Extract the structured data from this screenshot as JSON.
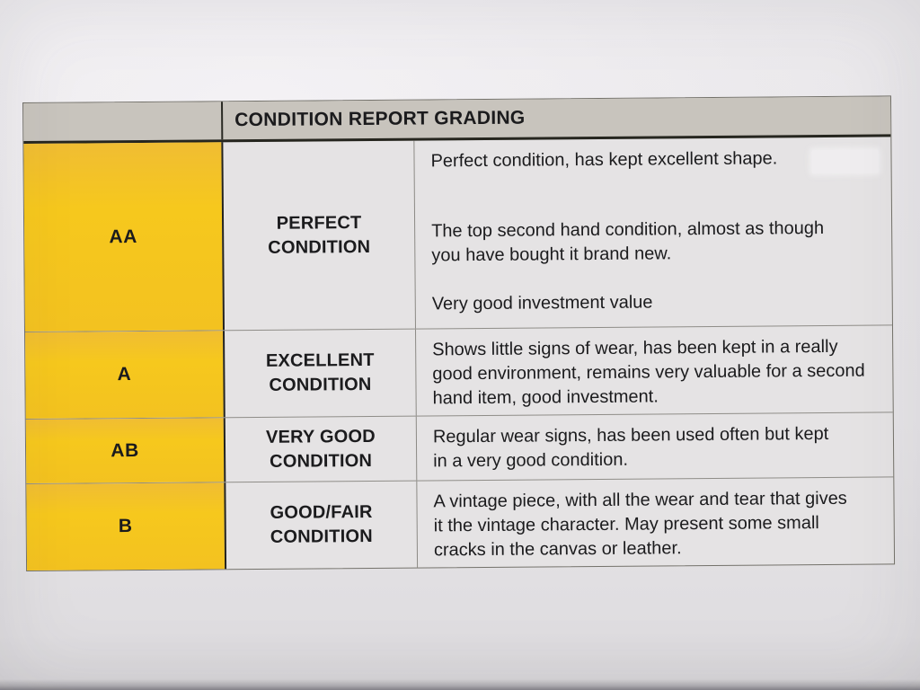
{
  "table": {
    "header": {
      "title": "CONDITION REPORT GRADING"
    },
    "rows": [
      {
        "grade": "AA",
        "condition": [
          "PERFECT",
          "CONDITION"
        ],
        "descriptions": [
          "Perfect condition, has kept excellent shape.",
          "The top second hand condition, almost as though you have bought it brand new.",
          "Very good investment value"
        ]
      },
      {
        "grade": "A",
        "condition": [
          "EXCELLENT",
          "CONDITION"
        ],
        "descriptions": [
          "Shows little signs of wear, has been kept in a really good environment, remains very valuable for a second hand item, good investment."
        ]
      },
      {
        "grade": "AB",
        "condition": [
          "VERY GOOD",
          "CONDITION"
        ],
        "descriptions": [
          "Regular wear signs, has been used often but kept in a very good condition."
        ]
      },
      {
        "grade": "B",
        "condition": [
          "GOOD/FAIR",
          "CONDITION"
        ],
        "descriptions": [
          "A vintage piece, with all the wear and tear that gives it the vintage character. May present some small cracks in the canvas or leather."
        ]
      }
    ],
    "colors": {
      "header_bg": "#C8C4BD",
      "grade_bg": "#F5C51F",
      "cell_bg": "#E5E3E4",
      "paper_bg": "#E7E5E8",
      "text": "#1B1B1D",
      "border_dark": "#26261F",
      "border_light": "#8F8D88"
    }
  }
}
